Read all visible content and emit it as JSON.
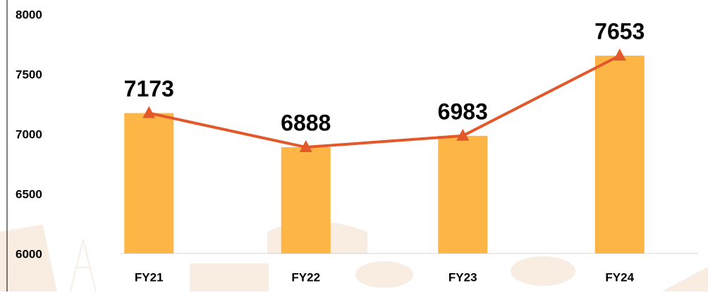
{
  "chart_data": {
    "type": "bar",
    "categories": [
      "FY21",
      "FY22",
      "FY23",
      "FY24"
    ],
    "values": [
      7173,
      6888,
      6983,
      7653
    ],
    "color": "#fdb645",
    "line_overlay": true,
    "line_color": "#e2582a",
    "marker": "triangle",
    "ylim": [
      6000,
      8000
    ],
    "yticks": [
      6000,
      6500,
      7000,
      7500,
      8000
    ],
    "grid": false
  }
}
